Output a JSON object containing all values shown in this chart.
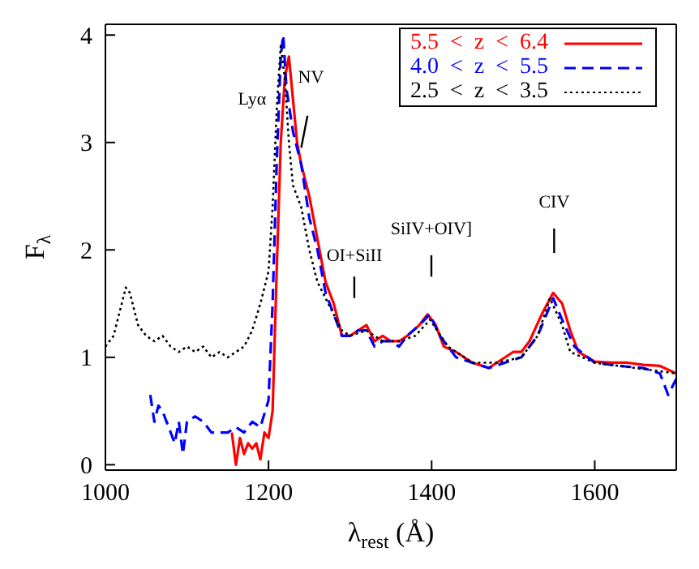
{
  "chart_data": {
    "type": "line",
    "xlabel": "λ$_{rest}$ (Å)",
    "ylabel": "F$_{λ}$",
    "xlim": [
      1000,
      1700
    ],
    "ylim": [
      -0.05,
      4.1
    ],
    "xticks": [
      1000,
      1200,
      1400,
      1600
    ],
    "yticks": [
      0,
      1,
      2,
      3,
      4
    ],
    "legend": "top right",
    "marker": "none",
    "series": [
      {
        "name": "5.5 < z < 6.4",
        "color": "#ff0000",
        "line_style": "solid",
        "x": [
          1155,
          1160,
          1165,
          1170,
          1175,
          1180,
          1185,
          1190,
          1195,
          1200,
          1205,
          1210,
          1215,
          1220,
          1225,
          1230,
          1235,
          1240,
          1250,
          1260,
          1270,
          1280,
          1290,
          1300,
          1310,
          1320,
          1330,
          1340,
          1350,
          1360,
          1370,
          1385,
          1395,
          1405,
          1415,
          1430,
          1450,
          1470,
          1480,
          1500,
          1510,
          1520,
          1535,
          1549,
          1560,
          1570,
          1580,
          1600,
          1620,
          1640,
          1660,
          1680,
          1700
        ],
        "values": [
          0.3,
          0.0,
          0.25,
          0.1,
          0.2,
          0.15,
          0.2,
          0.05,
          0.3,
          0.25,
          0.5,
          1.8,
          3.0,
          3.6,
          3.8,
          3.4,
          3.0,
          2.8,
          2.5,
          2.1,
          1.7,
          1.5,
          1.2,
          1.2,
          1.25,
          1.3,
          1.15,
          1.2,
          1.15,
          1.15,
          1.2,
          1.3,
          1.4,
          1.3,
          1.1,
          1.05,
          0.95,
          0.9,
          0.95,
          1.05,
          1.05,
          1.15,
          1.4,
          1.6,
          1.5,
          1.25,
          1.05,
          0.96,
          0.95,
          0.95,
          0.93,
          0.92,
          0.85
        ]
      },
      {
        "name": "4.0 < z < 5.5",
        "color": "#0000ff",
        "line_style": "dashed",
        "x": [
          1055,
          1060,
          1065,
          1070,
          1080,
          1085,
          1090,
          1095,
          1100,
          1110,
          1120,
          1130,
          1140,
          1150,
          1160,
          1170,
          1180,
          1190,
          1200,
          1205,
          1210,
          1215,
          1218,
          1222,
          1230,
          1240,
          1250,
          1260,
          1270,
          1280,
          1290,
          1300,
          1310,
          1320,
          1330,
          1340,
          1350,
          1360,
          1370,
          1385,
          1398,
          1410,
          1430,
          1450,
          1470,
          1490,
          1510,
          1530,
          1549,
          1560,
          1575,
          1600,
          1630,
          1660,
          1680,
          1690,
          1700
        ],
        "values": [
          0.65,
          0.4,
          0.55,
          0.5,
          0.3,
          0.2,
          0.4,
          0.1,
          0.4,
          0.45,
          0.4,
          0.3,
          0.3,
          0.3,
          0.35,
          0.3,
          0.4,
          0.35,
          0.6,
          1.5,
          2.8,
          3.8,
          4.0,
          3.5,
          3.1,
          2.8,
          2.3,
          2.0,
          1.6,
          1.4,
          1.2,
          1.2,
          1.25,
          1.25,
          1.1,
          1.15,
          1.15,
          1.1,
          1.2,
          1.3,
          1.4,
          1.2,
          1.0,
          0.95,
          0.9,
          0.95,
          1.0,
          1.2,
          1.55,
          1.35,
          1.1,
          0.95,
          0.92,
          0.9,
          0.85,
          0.65,
          0.8
        ]
      },
      {
        "name": "2.5 < z < 3.5",
        "color": "#000000",
        "line_style": "dotted",
        "x": [
          1000,
          1010,
          1020,
          1025,
          1030,
          1040,
          1050,
          1060,
          1070,
          1080,
          1090,
          1100,
          1110,
          1120,
          1130,
          1140,
          1150,
          1160,
          1170,
          1180,
          1190,
          1200,
          1205,
          1210,
          1215,
          1220,
          1225,
          1230,
          1235,
          1240,
          1250,
          1260,
          1270,
          1280,
          1290,
          1300,
          1320,
          1340,
          1360,
          1380,
          1398,
          1420,
          1450,
          1480,
          1510,
          1530,
          1545,
          1560,
          1570,
          1600,
          1650,
          1700
        ],
        "values": [
          1.1,
          1.2,
          1.5,
          1.65,
          1.6,
          1.3,
          1.2,
          1.15,
          1.2,
          1.1,
          1.05,
          1.1,
          1.05,
          1.1,
          1.0,
          1.05,
          1.0,
          1.05,
          1.1,
          1.25,
          1.5,
          1.8,
          2.4,
          3.3,
          3.9,
          3.6,
          3.0,
          2.6,
          2.5,
          2.4,
          2.0,
          1.7,
          1.55,
          1.4,
          1.25,
          1.2,
          1.25,
          1.15,
          1.15,
          1.2,
          1.35,
          1.1,
          0.95,
          0.95,
          1.0,
          1.2,
          1.55,
          1.3,
          1.05,
          0.95,
          0.9,
          0.85
        ]
      }
    ],
    "annotations": [
      "Lyα",
      "NV",
      "OI+SiII",
      "SiIV+OIV]",
      "CIV"
    ]
  }
}
